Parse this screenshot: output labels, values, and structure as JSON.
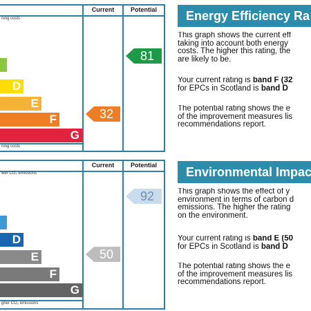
{
  "energy": {
    "columns": {
      "current": "Current",
      "potential": "Potential"
    },
    "top_text": "ning costs",
    "bottom_text": "ning costs",
    "bands": [
      {
        "letter": "D",
        "color": "#ffdd00"
      },
      {
        "letter": "E",
        "color": "#f5b335"
      },
      {
        "letter": "F",
        "color": "#ee7d24"
      },
      {
        "letter": "G",
        "color": "#e2233d"
      }
    ],
    "current_rating": {
      "value": "32",
      "band": "F",
      "color": "#ee7d24"
    },
    "potential_rating": {
      "value": "81",
      "band": "B",
      "color": "#1c9a48"
    },
    "title": "Energy Efficiency Ra",
    "paragraphs": {
      "p1": [
        "This graph shows the current eff",
        "taking into account both energy",
        "costs. The higher this rating, the",
        "are likely to be."
      ],
      "p2_line1_prefix": "Your current rating is ",
      "p2_line1_bold": "band F (32",
      "p2_line2_prefix": "for EPCs in Scotland is ",
      "p2_line2_bold": "band D",
      "p3": [
        "The potential rating shows the e",
        "of the improvement measures lis",
        "recommendations report."
      ]
    }
  },
  "environmental": {
    "columns": {
      "current": "Current",
      "potential": "Potential"
    },
    "top_text": "wer CO₂ emissions",
    "bottom_text": "gher CO₂ emissions",
    "bands": [
      {
        "letter": "D",
        "color": "#1b64b0"
      },
      {
        "letter": "E",
        "color": "#8a8a8a"
      },
      {
        "letter": "F",
        "color": "#7a7a7a"
      },
      {
        "letter": "G",
        "color": "#646464"
      }
    ],
    "current_rating": {
      "value": "50",
      "band": "E",
      "color": "#bdbdbd"
    },
    "potential_rating": {
      "value": "92",
      "band": "A",
      "color": "#c9dcee"
    },
    "title": "Environmental Impac",
    "paragraphs": {
      "p1": [
        "This graph shows the effect of y",
        "environment in terms of carbon d",
        "emissions. The higher the rating",
        "on the environment."
      ],
      "p2_line1_prefix": "Your current rating is ",
      "p2_line1_bold": "band E (50",
      "p2_line2_prefix": "for EPCs in Scotland is ",
      "p2_line2_bold": "band D",
      "p3": [
        "The potential rating shows the e",
        "of the improvement measures lis",
        "recommendations report."
      ]
    }
  }
}
